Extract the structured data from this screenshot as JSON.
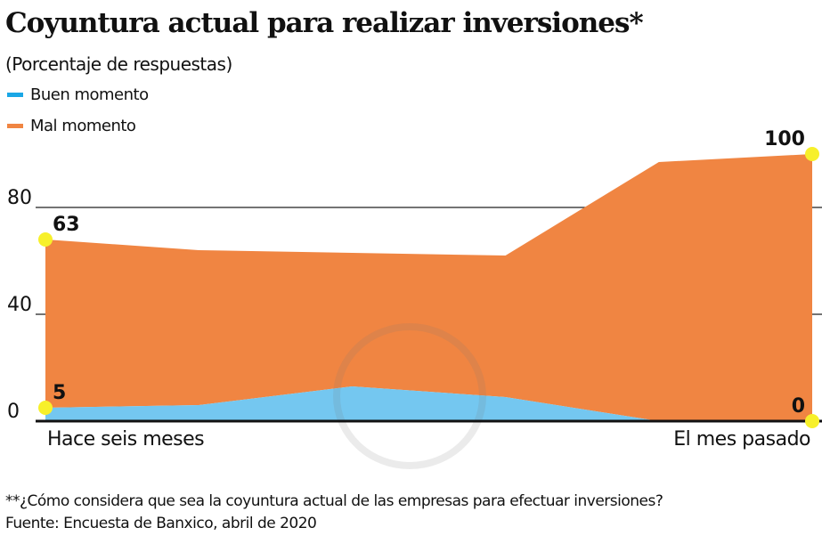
{
  "chart_data": {
    "type": "area",
    "stacked": true,
    "title": "Coyuntura actual para realizar inversiones*",
    "subtitle": "(Porcentaje de respuestas)",
    "x_labels": [
      "Hace seis meses",
      "El mes pasado"
    ],
    "x_points": 6,
    "series": [
      {
        "name": "Buen momento",
        "color": "#74c7f0",
        "values": [
          5,
          6,
          13,
          9,
          0,
          0
        ]
      },
      {
        "name": "Mal momento",
        "color": "#f08542",
        "values": [
          63,
          58,
          50,
          53,
          97,
          100
        ]
      }
    ],
    "data_labels": [
      {
        "series": "Mal momento",
        "point": 0,
        "text": "63"
      },
      {
        "series": "Buen momento",
        "point": 0,
        "text": "5"
      },
      {
        "series": "Mal momento",
        "point": 5,
        "text": "100"
      },
      {
        "series": "Buen momento",
        "point": 5,
        "text": "0"
      }
    ],
    "y_ticks": [
      "0",
      "40",
      "80"
    ],
    "ylim": [
      0,
      100
    ],
    "grid": true,
    "legend_position": "top-left"
  },
  "footnote": "**¿Cómo considera que sea la coyuntura actual de las empresas para efectuar inversiones?",
  "source": "Fuente: Encuesta de Banxico, abril de 2020"
}
